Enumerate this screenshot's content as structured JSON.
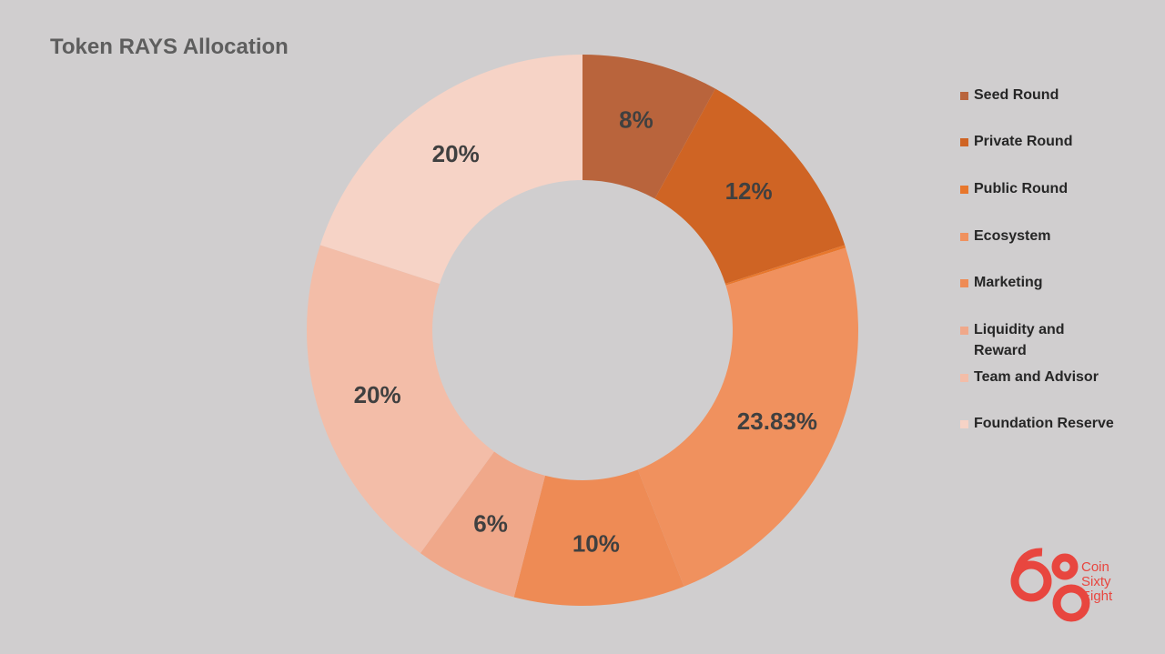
{
  "chart_data": {
    "type": "donut",
    "title": "Token RAYS Allocation",
    "categories": [
      "Seed Round",
      "Private Round",
      "Public Round",
      "Ecosystem",
      "Marketing",
      "Liquidity and Reward",
      "Team and Advisor",
      "Foundation Reserve"
    ],
    "values": [
      8,
      12,
      0.17,
      23.83,
      10,
      6,
      20,
      20
    ],
    "value_labels": [
      "8%",
      "12%",
      null,
      "23.83%",
      "10%",
      "6%",
      "20%",
      "20%"
    ],
    "colors": [
      "#b9643c",
      "#cf6424",
      "#e8772c",
      "#f0915e",
      "#ee8b55",
      "#f0a88a",
      "#f3bda8",
      "#f6d3c6"
    ],
    "legend": "right"
  },
  "logo": {
    "lines": [
      "Coin",
      "Sixty",
      "Eight"
    ]
  }
}
